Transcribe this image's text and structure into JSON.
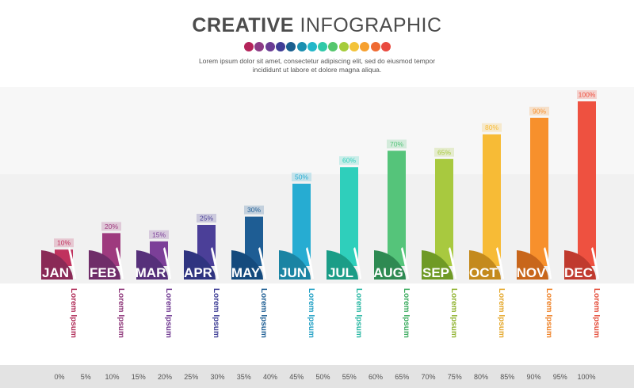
{
  "header": {
    "title_bold": "CREATIVE",
    "title_light": "INFOGRAPHIC",
    "description_line1": "Lorem ipsum dolor sit amet, consectetur adipiscing elit, sed do eiusmod tempor",
    "description_line2": "incididunt ut labore et dolore magna aliqua.",
    "dot_colors": [
      "#b4245a",
      "#8c3b85",
      "#6a3c94",
      "#3f3d96",
      "#1a5f8f",
      "#1a8fb0",
      "#22b7c9",
      "#2fc9a8",
      "#55c66d",
      "#a5cc3b",
      "#f3c33a",
      "#f6a02f",
      "#ef6a32",
      "#e94a3f"
    ]
  },
  "chart_data": {
    "type": "bar",
    "categories": [
      "JAN",
      "FEB",
      "MAR",
      "APR",
      "MAY",
      "JUN",
      "JUL",
      "AUG",
      "SEP",
      "OCT",
      "NOV",
      "DEC"
    ],
    "values": [
      10,
      20,
      15,
      25,
      30,
      50,
      60,
      70,
      65,
      80,
      90,
      100
    ],
    "data_labels": [
      "10%",
      "20%",
      "15%",
      "25%",
      "30%",
      "50%",
      "60%",
      "70%",
      "65%",
      "80%",
      "90%",
      "100%"
    ],
    "colors": [
      "#c0325e",
      "#9e3a7e",
      "#7c3f98",
      "#4b3f98",
      "#1e5d94",
      "#26acd2",
      "#2fcfbb",
      "#55c47a",
      "#a8c93f",
      "#f7bb36",
      "#f7902c",
      "#ee5140"
    ],
    "tab_colors": [
      "#8a2a56",
      "#6f2d69",
      "#56307a",
      "#2f3480",
      "#144a7d",
      "#1a84a3",
      "#1b9d87",
      "#2e8a52",
      "#6f9a25",
      "#c48a1d",
      "#c8661b",
      "#c03a2e"
    ],
    "label_colors": [
      "#b02c58",
      "#8d3478",
      "#6e3690",
      "#3d3d95",
      "#1b5c92",
      "#1f9fc4",
      "#22b5a0",
      "#3bab5e",
      "#8fb22e",
      "#e4a72a",
      "#ee7f22",
      "#e44c39"
    ],
    "item_label": "Lorem Ipsum",
    "axis_ticks": [
      "0%",
      "5%",
      "10%",
      "15%",
      "20%",
      "25%",
      "30%",
      "35%",
      "40%",
      "45%",
      "50%",
      "55%",
      "60%",
      "65%",
      "70%",
      "75%",
      "80%",
      "85%",
      "90%",
      "95%",
      "100%"
    ],
    "ylim": [
      0,
      100
    ]
  }
}
